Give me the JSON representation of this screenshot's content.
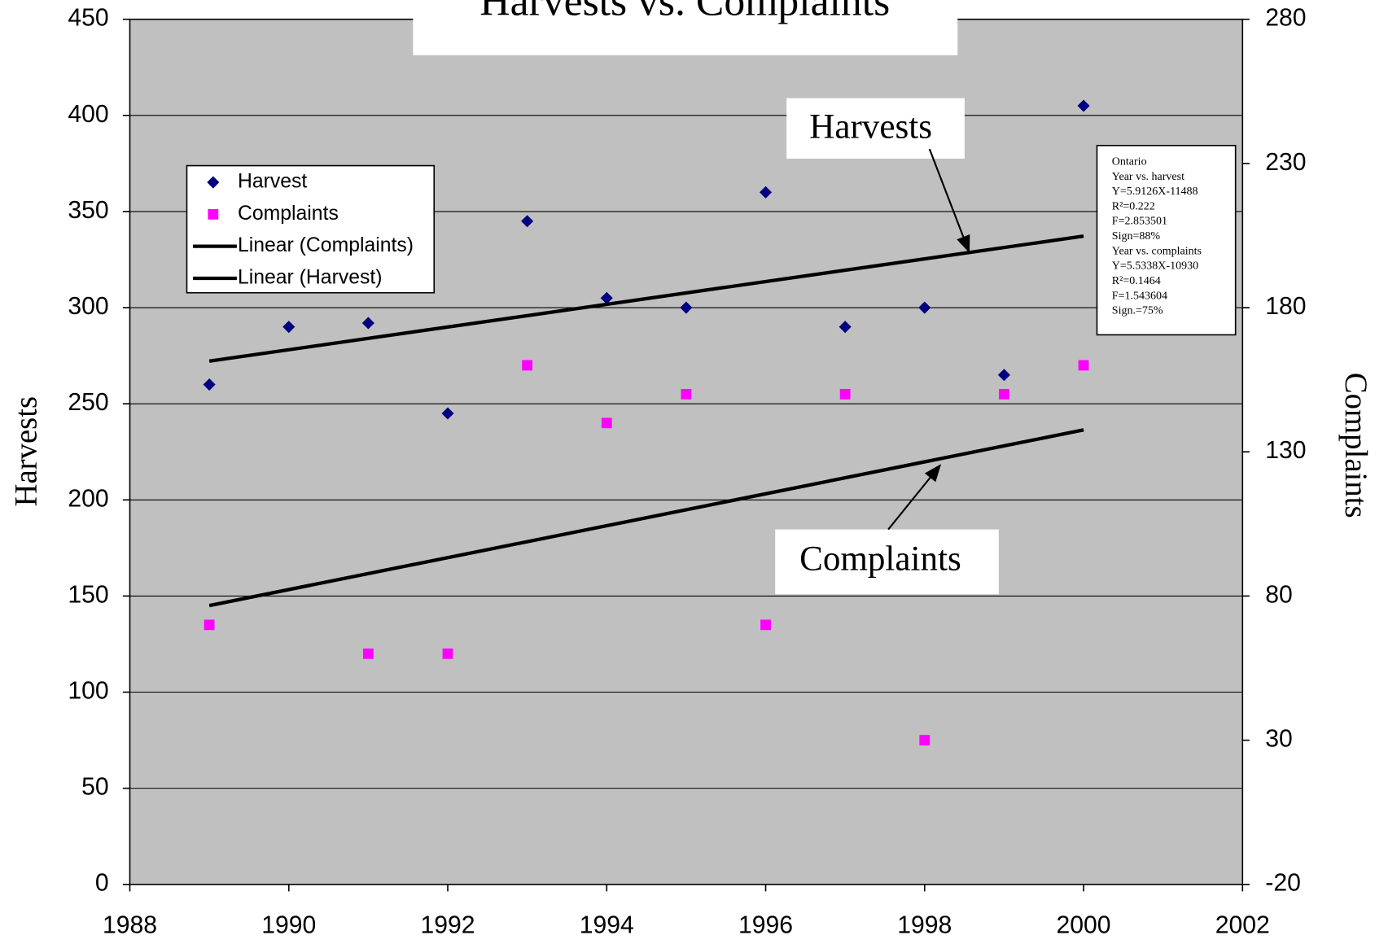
{
  "chart_data": {
    "type": "scatter",
    "title": "Harvests vs. Complaints",
    "ylabel": "Harvests",
    "y2label": "Complaints",
    "xlim": [
      1988,
      2002
    ],
    "xticks": [
      1988,
      1990,
      1992,
      1994,
      1996,
      1998,
      2000,
      2002
    ],
    "ylim": [
      0,
      450
    ],
    "yticks": [
      0,
      50,
      100,
      150,
      200,
      250,
      300,
      350,
      400,
      450
    ],
    "y2lim": [
      -20,
      280
    ],
    "y2ticks": [
      -20,
      30,
      80,
      130,
      180,
      230,
      280
    ],
    "grid": true,
    "legend": "upper left",
    "x": [
      1989,
      1990,
      1991,
      1992,
      1993,
      1994,
      1995,
      1996,
      1997,
      1998,
      1999,
      2000
    ],
    "series": [
      {
        "name": "Harvest",
        "color": "#000080",
        "marker": "diamond",
        "values": [
          260,
          290,
          292,
          245,
          345,
          305,
          300,
          360,
          290,
          300,
          265,
          405
        ]
      },
      {
        "name": "Complaints",
        "color": "#ff00ff",
        "marker": "square",
        "axis": "y2",
        "values": [
          70,
          null,
          60,
          60,
          160,
          140,
          150,
          70,
          150,
          30,
          150,
          160
        ]
      }
    ],
    "trendlines": [
      {
        "name": "Linear (Complaints)",
        "color": "#000000",
        "axis": "y2",
        "x": [
          1989,
          2000
        ],
        "values": [
          76.7,
          137.6
        ]
      },
      {
        "name": "Linear (Harvest)",
        "color": "#000000",
        "x": [
          1989,
          2000
        ],
        "values": [
          272.2,
          337.2
        ]
      }
    ],
    "annotations": [
      "Harvests",
      "Complaints"
    ],
    "stats_box": [
      "Ontario",
      "Year vs. harvest",
      "Y=5.9126X-11488",
      "R²=0.222",
      "F=2.853501",
      "Sign=88%",
      "Year vs. complaints",
      "Y=5.5338X-10930",
      "R²=0.1464",
      "F=1.543604",
      "Sign.=75%"
    ]
  }
}
